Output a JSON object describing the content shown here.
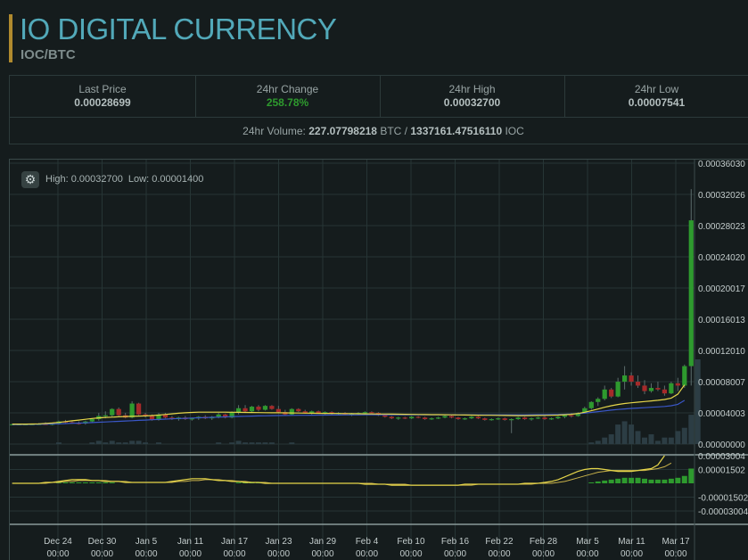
{
  "header": {
    "title": "IO DIGITAL CURRENCY",
    "pair": "IOC/BTC"
  },
  "stats": {
    "last_price_label": "Last Price",
    "last_price": "0.00028699",
    "change_label": "24hr Change",
    "change": "258.78%",
    "high_label": "24hr High",
    "high": "0.00032700",
    "low_label": "24hr Low",
    "low": "0.00007541",
    "volume_label": "24hr Volume:",
    "volume_btc": "227.07798218",
    "volume_btc_unit": "BTC /",
    "volume_ioc": "1337161.47516110",
    "volume_ioc_unit": "IOC"
  },
  "chart_info": {
    "high_label": "High: 0.00032700",
    "low_label": "Low: 0.00001400"
  },
  "colors": {
    "up": "#2e9a2e",
    "down": "#a52a2a",
    "ma_fast": "#e6d64a",
    "ma_slow": "#3a57c8",
    "accent": "#52a9b9"
  },
  "chart_data": {
    "type": "candlestick",
    "x_tick_labels": [
      "Dec 24",
      "Dec 30",
      "Jan 5",
      "Jan 11",
      "Jan 17",
      "Jan 23",
      "Jan 29",
      "Feb 4",
      "Feb 10",
      "Feb 16",
      "Feb 22",
      "Feb 28",
      "Mar 5",
      "Mar 11",
      "Mar 17"
    ],
    "x_tick_sublabel": "00:00",
    "price_axis_labels": [
      "0.00036030",
      "0.00032026",
      "0.00028023",
      "0.00024020",
      "0.00020017",
      "0.00016013",
      "0.00012010",
      "0.00008007",
      "0.00004003",
      "0.00000000"
    ],
    "price_ylim": [
      0,
      0.0003603
    ],
    "indicator_axis_labels": [
      "0.00003004",
      "0.00001502",
      "-0.00001502",
      "-0.00003004"
    ],
    "indicator_ylim": [
      -3.004e-05,
      3.004e-05
    ],
    "candles": [
      [
        2.55e-05,
        2.6e-05,
        2.5e-05,
        2.55e-05
      ],
      [
        2.55e-05,
        2.6e-05,
        2.5e-05,
        2.55e-05
      ],
      [
        2.55e-05,
        2.6e-05,
        2.5e-05,
        2.55e-05
      ],
      [
        2.55e-05,
        2.6e-05,
        2.5e-05,
        2.56e-05
      ],
      [
        2.56e-05,
        2.7e-05,
        2.5e-05,
        2.58e-05
      ],
      [
        2.58e-05,
        2.8e-05,
        2.5e-05,
        2.55e-05
      ],
      [
        2.55e-05,
        2.7e-05,
        2.4e-05,
        2.6e-05
      ],
      [
        2.6e-05,
        3e-05,
        2.5e-05,
        2.9e-05
      ],
      [
        2.9e-05,
        3.1e-05,
        2.7e-05,
        2.8e-05
      ],
      [
        2.8e-05,
        3e-05,
        2.6e-05,
        2.7e-05
      ],
      [
        2.7e-05,
        2.9e-05,
        2.5e-05,
        2.65e-05
      ],
      [
        2.65e-05,
        3e-05,
        2.5e-05,
        2.9e-05
      ],
      [
        2.9e-05,
        3.3e-05,
        2.7e-05,
        3.2e-05
      ],
      [
        3.2e-05,
        4e-05,
        3e-05,
        3.6e-05
      ],
      [
        3.6e-05,
        4.2e-05,
        3.3e-05,
        3.7e-05
      ],
      [
        3.7e-05,
        4.6e-05,
        3.5e-05,
        4.5e-05
      ],
      [
        4.5e-05,
        4.7e-05,
        3.6e-05,
        3.7e-05
      ],
      [
        3.7e-05,
        4e-05,
        3.3e-05,
        3.4e-05
      ],
      [
        3.4e-05,
        5.5e-05,
        3.3e-05,
        5.2e-05
      ],
      [
        5.2e-05,
        5.3e-05,
        3.7e-05,
        3.8e-05
      ],
      [
        3.8e-05,
        4e-05,
        3.4e-05,
        3.6e-05
      ],
      [
        3.6e-05,
        3.8e-05,
        3e-05,
        3.1e-05
      ],
      [
        3.1e-05,
        4e-05,
        3e-05,
        3.8e-05
      ],
      [
        3.8e-05,
        4e-05,
        3.3e-05,
        3.4e-05
      ],
      [
        3.4e-05,
        3.6e-05,
        3.1e-05,
        3.2e-05
      ],
      [
        3.2e-05,
        3.5e-05,
        3e-05,
        3.4e-05
      ],
      [
        3.4e-05,
        3.6e-05,
        3.1e-05,
        3.2e-05
      ],
      [
        3.2e-05,
        3.4e-05,
        3e-05,
        3.3e-05
      ],
      [
        3.3e-05,
        3.6e-05,
        3.1e-05,
        3.5e-05
      ],
      [
        3.5e-05,
        3.7e-05,
        3.2e-05,
        3.3e-05
      ],
      [
        3.3e-05,
        3.6e-05,
        3.1e-05,
        3.5e-05
      ],
      [
        3.5e-05,
        4e-05,
        3.3e-05,
        3.8e-05
      ],
      [
        3.8e-05,
        3.9e-05,
        3.3e-05,
        3.4e-05
      ],
      [
        3.4e-05,
        4.2e-05,
        3.3e-05,
        4.1e-05
      ],
      [
        4.1e-05,
        5e-05,
        3.8e-05,
        4.6e-05
      ],
      [
        4.6e-05,
        5e-05,
        4e-05,
        4.2e-05
      ],
      [
        4.2e-05,
        4.9e-05,
        4.1e-05,
        4.8e-05
      ],
      [
        4.8e-05,
        5e-05,
        4.2e-05,
        4.4e-05
      ],
      [
        4.4e-05,
        5e-05,
        4.3e-05,
        4.9e-05
      ],
      [
        4.9e-05,
        5e-05,
        4.4e-05,
        4.5e-05
      ],
      [
        4.5e-05,
        4.9e-05,
        4e-05,
        4.1e-05
      ],
      [
        4.1e-05,
        4.4e-05,
        3.7e-05,
        3.8e-05
      ],
      [
        3.8e-05,
        4.6e-05,
        3.7e-05,
        4.5e-05
      ],
      [
        4.5e-05,
        4.6e-05,
        4.1e-05,
        4.2e-05
      ],
      [
        4.2e-05,
        4.4e-05,
        3.9e-05,
        4e-05
      ],
      [
        4e-05,
        4.3e-05,
        3.8e-05,
        4.2e-05
      ],
      [
        4.2e-05,
        4.3e-05,
        3.9e-05,
        4e-05
      ],
      [
        4e-05,
        4.2e-05,
        3.8e-05,
        4.1e-05
      ],
      [
        4.1e-05,
        4.2e-05,
        3.8e-05,
        3.9e-05
      ],
      [
        3.9e-05,
        4.1e-05,
        3.7e-05,
        4e-05
      ],
      [
        4e-05,
        4.1e-05,
        3.7e-05,
        3.8e-05
      ],
      [
        3.8e-05,
        4e-05,
        3.6e-05,
        3.9e-05
      ],
      [
        3.9e-05,
        4.1e-05,
        3.7e-05,
        4e-05
      ],
      [
        4e-05,
        4.2e-05,
        3.8e-05,
        4.1e-05
      ],
      [
        4.1e-05,
        4.2e-05,
        3.9e-05,
        4e-05
      ],
      [
        4e-05,
        4.1e-05,
        3.6e-05,
        3.7e-05
      ],
      [
        3.7e-05,
        3.8e-05,
        3.4e-05,
        3.5e-05
      ],
      [
        3.5e-05,
        3.6e-05,
        3.2e-05,
        3.3e-05
      ],
      [
        3.3e-05,
        3.5e-05,
        3.1e-05,
        3.4e-05
      ],
      [
        3.4e-05,
        3.5e-05,
        3.2e-05,
        3.3e-05
      ],
      [
        3.3e-05,
        3.6e-05,
        3.2e-05,
        3.5e-05
      ],
      [
        3.5e-05,
        3.6e-05,
        3.3e-05,
        3.4e-05
      ],
      [
        3.4e-05,
        3.5e-05,
        3.1e-05,
        3.2e-05
      ],
      [
        3.2e-05,
        3.4e-05,
        3.1e-05,
        3.3e-05
      ],
      [
        3.3e-05,
        3.5e-05,
        3.2e-05,
        3.4e-05
      ],
      [
        3.4e-05,
        3.7e-05,
        3.3e-05,
        3.6e-05
      ],
      [
        3.6e-05,
        3.7e-05,
        3.3e-05,
        3.4e-05
      ],
      [
        3.4e-05,
        3.5e-05,
        3.1e-05,
        3.2e-05
      ],
      [
        3.2e-05,
        3.4e-05,
        3.1e-05,
        3.3e-05
      ],
      [
        3.3e-05,
        3.6e-05,
        3.2e-05,
        3.5e-05
      ],
      [
        3.5e-05,
        3.6e-05,
        3.2e-05,
        3.3e-05
      ],
      [
        3.3e-05,
        3.4e-05,
        3e-05,
        3.1e-05
      ],
      [
        3.1e-05,
        3.3e-05,
        3e-05,
        3.2e-05
      ],
      [
        3.2e-05,
        3.4e-05,
        3.1e-05,
        3.3e-05
      ],
      [
        3.3e-05,
        3.4e-05,
        3e-05,
        3.1e-05
      ],
      [
        3.1e-05,
        3.3e-05,
        1.4e-05,
        3.2e-05
      ],
      [
        3.2e-05,
        3.5e-05,
        3.1e-05,
        3.4e-05
      ],
      [
        3.4e-05,
        3.5e-05,
        3.1e-05,
        3.2e-05
      ],
      [
        3.2e-05,
        3.4e-05,
        3e-05,
        3.3e-05
      ],
      [
        3.3e-05,
        3.5e-05,
        3.2e-05,
        3.4e-05
      ],
      [
        3.4e-05,
        3.6e-05,
        3.1e-05,
        3.2e-05
      ],
      [
        3.2e-05,
        3.4e-05,
        3.1e-05,
        3.3e-05
      ],
      [
        3.3e-05,
        3.6e-05,
        3.2e-05,
        3.5e-05
      ],
      [
        3.5e-05,
        3.8e-05,
        3.3e-05,
        3.7e-05
      ],
      [
        3.7e-05,
        4e-05,
        3.4e-05,
        3.6e-05
      ],
      [
        3.6e-05,
        4.1e-05,
        3.5e-05,
        4e-05
      ],
      [
        4e-05,
        4.8e-05,
        3.9e-05,
        4.6e-05
      ],
      [
        4.6e-05,
        5.5e-05,
        4.4e-05,
        5.4e-05
      ],
      [
        5.4e-05,
        6e-05,
        4.9e-05,
        5.8e-05
      ],
      [
        5.8e-05,
        7.5e-05,
        5.6e-05,
        7e-05
      ],
      [
        7e-05,
        7.2e-05,
        5.9e-05,
        6.1e-05
      ],
      [
        6.1e-05,
        8.5e-05,
        6e-05,
        8e-05
      ],
      [
        8e-05,
        0.0001,
        7e-05,
        8.8e-05
      ],
      [
        8.8e-05,
        9.2e-05,
        7.5e-05,
        8e-05
      ],
      [
        8e-05,
        8.8e-05,
        7.2e-05,
        7.5e-05
      ],
      [
        7.5e-05,
        8.2e-05,
        6.4e-05,
        6.8e-05
      ],
      [
        6.8e-05,
        7.8e-05,
        6.6e-05,
        7.2e-05
      ],
      [
        7.2e-05,
        8e-05,
        6.8e-05,
        7e-05
      ],
      [
        7e-05,
        7.5e-05,
        6.2e-05,
        6.5e-05
      ],
      [
        6.5e-05,
        8e-05,
        6.4e-05,
        7.8e-05
      ],
      [
        7.8e-05,
        8.5e-05,
        6.8e-05,
        7.5e-05
      ],
      [
        7.5e-05,
        0.000102,
        7.2e-05,
        0.0001
      ],
      [
        0.0001,
        0.000327,
        7.5e-05,
        0.000287
      ]
    ],
    "volume": [
      0,
      0,
      0,
      0,
      0,
      0,
      0,
      0.5,
      0,
      0,
      0,
      0,
      0.5,
      1,
      0.5,
      1,
      0.5,
      0.5,
      1,
      1,
      0.5,
      0,
      0.5,
      0,
      0,
      0,
      0,
      0,
      0,
      0,
      0,
      0.5,
      0,
      0.5,
      1,
      0.5,
      0.5,
      0.5,
      0.5,
      0.5,
      0,
      0,
      0.5,
      0,
      0,
      0,
      0,
      0,
      0,
      0,
      0,
      0,
      0,
      0,
      0,
      0,
      0,
      0,
      0,
      0,
      0,
      0,
      0,
      0,
      0,
      0,
      0,
      0,
      0,
      0,
      0,
      0,
      0,
      0,
      0,
      0,
      0,
      0,
      0,
      0,
      0,
      0,
      0,
      0,
      0,
      0,
      0,
      0.5,
      1,
      2,
      3,
      6,
      7,
      6,
      4,
      2,
      3,
      1,
      2,
      2,
      4,
      5,
      9,
      26
    ],
    "ma_fast": [
      2.56e-05,
      2.56e-05,
      2.56e-05,
      2.57e-05,
      2.6e-05,
      2.64e-05,
      2.7e-05,
      2.78e-05,
      2.88e-05,
      2.98e-05,
      3.08e-05,
      3.18e-05,
      3.28e-05,
      3.36e-05,
      3.42e-05,
      3.46e-05,
      3.5e-05,
      3.53e-05,
      3.56e-05,
      3.59e-05,
      3.62e-05,
      3.66e-05,
      3.72e-05,
      3.8e-05,
      3.88e-05,
      3.96e-05,
      4.02e-05,
      4.06e-05,
      4.09e-05,
      4.1e-05,
      4.1e-05,
      4.1e-05,
      4.09e-05,
      4.08e-05,
      4.07e-05,
      4.06e-05,
      4.05e-05,
      4.04e-05,
      4.03e-05,
      4.02e-05,
      4.01e-05,
      4e-05,
      3.99e-05,
      3.98e-05,
      3.97e-05,
      3.96e-05,
      3.95e-05,
      3.94e-05,
      3.93e-05,
      3.92e-05,
      3.91e-05,
      3.9e-05,
      3.89e-05,
      3.88e-05,
      3.87e-05,
      3.86e-05,
      3.85e-05,
      3.84e-05,
      3.83e-05,
      3.82e-05,
      3.81e-05,
      3.8e-05,
      3.79e-05,
      3.78e-05,
      3.77e-05,
      3.76e-05,
      3.75e-05,
      3.74e-05,
      3.73e-05,
      3.72e-05,
      3.71e-05,
      3.7e-05,
      3.69e-05,
      3.68e-05,
      3.67e-05,
      3.66e-05,
      3.65e-05,
      3.65e-05,
      3.66e-05,
      3.67e-05,
      3.68e-05,
      3.7e-05,
      3.72e-05,
      3.76e-05,
      3.82e-05,
      3.92e-05,
      4.08e-05,
      4.28e-05,
      4.5e-05,
      4.72e-05,
      4.92e-05,
      5.08e-05,
      5.2e-05,
      5.3e-05,
      5.38e-05,
      5.46e-05,
      5.54e-05,
      5.62e-05,
      5.72e-05,
      5.9e-05,
      6.4e-05,
      7.6e-05
    ],
    "ma_slow": [
      2.5e-05,
      2.51e-05,
      2.52e-05,
      2.53e-05,
      2.54e-05,
      2.56e-05,
      2.58e-05,
      2.6e-05,
      2.63e-05,
      2.66e-05,
      2.69e-05,
      2.72e-05,
      2.76e-05,
      2.8e-05,
      2.84e-05,
      2.88e-05,
      2.92e-05,
      2.96e-05,
      3e-05,
      3.04e-05,
      3.08e-05,
      3.12e-05,
      3.16e-05,
      3.2e-05,
      3.24e-05,
      3.28e-05,
      3.31e-05,
      3.34e-05,
      3.37e-05,
      3.4e-05,
      3.43e-05,
      3.46e-05,
      3.49e-05,
      3.52e-05,
      3.55e-05,
      3.57e-05,
      3.59e-05,
      3.61e-05,
      3.63e-05,
      3.65e-05,
      3.66e-05,
      3.67e-05,
      3.68e-05,
      3.69e-05,
      3.7e-05,
      3.71e-05,
      3.72e-05,
      3.72e-05,
      3.73e-05,
      3.73e-05,
      3.74e-05,
      3.74e-05,
      3.74e-05,
      3.75e-05,
      3.75e-05,
      3.75e-05,
      3.75e-05,
      3.75e-05,
      3.75e-05,
      3.75e-05,
      3.75e-05,
      3.75e-05,
      3.75e-05,
      3.75e-05,
      3.75e-05,
      3.75e-05,
      3.75e-05,
      3.75e-05,
      3.75e-05,
      3.75e-05,
      3.75e-05,
      3.75e-05,
      3.75e-05,
      3.75e-05,
      3.75e-05,
      3.75e-05,
      3.75e-05,
      3.75e-05,
      3.76e-05,
      3.77e-05,
      3.78e-05,
      3.79e-05,
      3.8e-05,
      3.82e-05,
      3.85e-05,
      3.9e-05,
      3.97e-05,
      4.06e-05,
      4.16e-05,
      4.26e-05,
      4.36e-05,
      4.44e-05,
      4.51e-05,
      4.57e-05,
      4.62e-05,
      4.67e-05,
      4.72e-05,
      4.77e-05,
      4.83e-05,
      4.92e-05,
      5.1e-05,
      5.6e-05
    ],
    "macd_histogram": [
      0,
      0,
      0,
      0,
      0,
      0,
      0,
      1e-06,
      1e-06,
      1e-06,
      1e-06,
      1e-06,
      1e-06,
      1e-06,
      1e-06,
      1e-06,
      0,
      0,
      0,
      0,
      0,
      0,
      0,
      0,
      0,
      0,
      0,
      0,
      0,
      0,
      0,
      0,
      0,
      0,
      1e-06,
      1e-06,
      1e-06,
      1e-06,
      1e-06,
      0,
      0,
      0,
      0,
      0,
      0,
      0,
      0,
      0,
      0,
      0,
      0,
      0,
      0,
      0,
      0,
      0,
      0,
      0,
      0,
      0,
      0,
      0,
      0,
      0,
      0,
      0,
      0,
      0,
      0,
      0,
      0,
      0,
      0,
      0,
      0,
      0,
      0,
      0,
      0,
      0,
      0,
      0,
      0,
      0,
      0,
      0,
      0,
      1e-06,
      2e-06,
      3e-06,
      4e-06,
      5e-06,
      6e-06,
      6e-06,
      6e-06,
      5e-06,
      4e-06,
      4e-06,
      4e-06,
      5e-06,
      6e-06,
      8e-06,
      1.6e-05
    ],
    "macd_line": [
      0,
      0,
      0,
      0,
      0,
      1e-06,
      1e-06,
      2e-06,
      3e-06,
      4e-06,
      4e-06,
      4e-06,
      3e-06,
      3e-06,
      2e-06,
      2e-06,
      2e-06,
      1e-06,
      1e-06,
      1e-06,
      1e-06,
      1e-06,
      1e-06,
      1e-06,
      2e-06,
      3e-06,
      4e-06,
      5e-06,
      5e-06,
      5e-06,
      4e-06,
      3e-06,
      3e-06,
      2e-06,
      2e-06,
      1e-06,
      1e-06,
      1e-06,
      0,
      0,
      0,
      0,
      0,
      0,
      0,
      0,
      0,
      0,
      0,
      0,
      0,
      0,
      0,
      -1e-06,
      -1e-06,
      -1e-06,
      -1e-06,
      -2e-06,
      -2e-06,
      -2e-06,
      -2e-06,
      -2e-06,
      -2e-06,
      -2e-06,
      -2e-06,
      -2e-06,
      -2e-06,
      -2e-06,
      -1e-06,
      -1e-06,
      -1e-06,
      -1e-06,
      -1e-06,
      -1e-06,
      -1e-06,
      -1e-06,
      -1e-06,
      0,
      0,
      0,
      1e-06,
      2e-06,
      4e-06,
      7e-06,
      1e-05,
      1.3e-05,
      1.5e-05,
      1.6e-05,
      1.6e-05,
      1.5e-05,
      1.4e-05,
      1.3e-05,
      1.3e-05,
      1.3e-05,
      1.4e-05,
      1.5e-05,
      1.6e-05,
      2e-05,
      3e-05
    ],
    "macd_signal": [
      0,
      0,
      0,
      0,
      0,
      0,
      1e-06,
      1e-06,
      2e-06,
      2e-06,
      3e-06,
      3e-06,
      3e-06,
      3e-06,
      3e-06,
      2e-06,
      2e-06,
      2e-06,
      1e-06,
      1e-06,
      1e-06,
      1e-06,
      1e-06,
      1e-06,
      1e-06,
      2e-06,
      2e-06,
      3e-06,
      3e-06,
      4e-06,
      4e-06,
      4e-06,
      3e-06,
      3e-06,
      2e-06,
      2e-06,
      1e-06,
      1e-06,
      1e-06,
      0,
      0,
      0,
      0,
      0,
      0,
      0,
      0,
      0,
      0,
      0,
      0,
      0,
      0,
      0,
      0,
      -1e-06,
      -1e-06,
      -1e-06,
      -1e-06,
      -1e-06,
      -2e-06,
      -2e-06,
      -2e-06,
      -2e-06,
      -2e-06,
      -2e-06,
      -2e-06,
      -2e-06,
      -2e-06,
      -2e-06,
      -1e-06,
      -1e-06,
      -1e-06,
      -1e-06,
      -1e-06,
      -1e-06,
      -1e-06,
      -1e-06,
      -1e-06,
      0,
      0,
      0,
      1e-06,
      2e-06,
      4e-06,
      6e-06,
      8e-06,
      1e-05,
      1.2e-05,
      1.3e-05,
      1.4e-05,
      1.4e-05,
      1.4e-05,
      1.4e-05,
      1.4e-05,
      1.4e-05,
      1.5e-05,
      1.6e-05,
      1.8e-05,
      2.2e-05
    ]
  }
}
